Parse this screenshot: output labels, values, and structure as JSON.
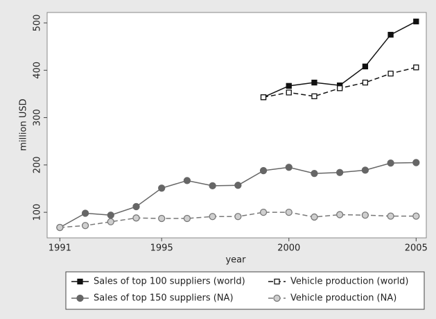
{
  "chart_data": {
    "type": "line",
    "x": [
      1991,
      1992,
      1993,
      1994,
      1995,
      1996,
      1997,
      1998,
      1999,
      2000,
      2001,
      2002,
      2003,
      2004,
      2005
    ],
    "x_label": "year",
    "y_label": "million USD",
    "xlim": [
      1990.5,
      2005.4
    ],
    "ylim": [
      46,
      522
    ],
    "xticks": [
      1991,
      1995,
      2000,
      2005
    ],
    "yticks": [
      100,
      200,
      300,
      400,
      500
    ],
    "grid": false,
    "legend": "bottom",
    "series": [
      {
        "name": "Sales of top 100 suppliers (world)",
        "color": "#111111",
        "marker": "square",
        "filled": true,
        "dash": false,
        "values": [
          null,
          null,
          null,
          null,
          null,
          null,
          null,
          null,
          343,
          367,
          374,
          368,
          408,
          475,
          503
        ]
      },
      {
        "name": "Vehicle production (world)",
        "color": "#111111",
        "marker": "square",
        "filled": false,
        "dash": true,
        "values": [
          null,
          null,
          null,
          null,
          null,
          null,
          null,
          null,
          343,
          353,
          345,
          362,
          374,
          393,
          406
        ]
      },
      {
        "name": "Sales of top 150 suppliers (NA)",
        "color": "#666666",
        "marker": "circle",
        "filled": true,
        "dash": false,
        "values": [
          68,
          98,
          94,
          112,
          151,
          167,
          156,
          157,
          188,
          195,
          182,
          184,
          189,
          204,
          205
        ]
      },
      {
        "name": "Vehicle production (NA)",
        "color": "#777777",
        "marker": "circle",
        "filled": false,
        "dash": true,
        "values": [
          68,
          72,
          80,
          88,
          87,
          87,
          91,
          91,
          100,
          100,
          90,
          95,
          94,
          92,
          92
        ]
      }
    ]
  }
}
